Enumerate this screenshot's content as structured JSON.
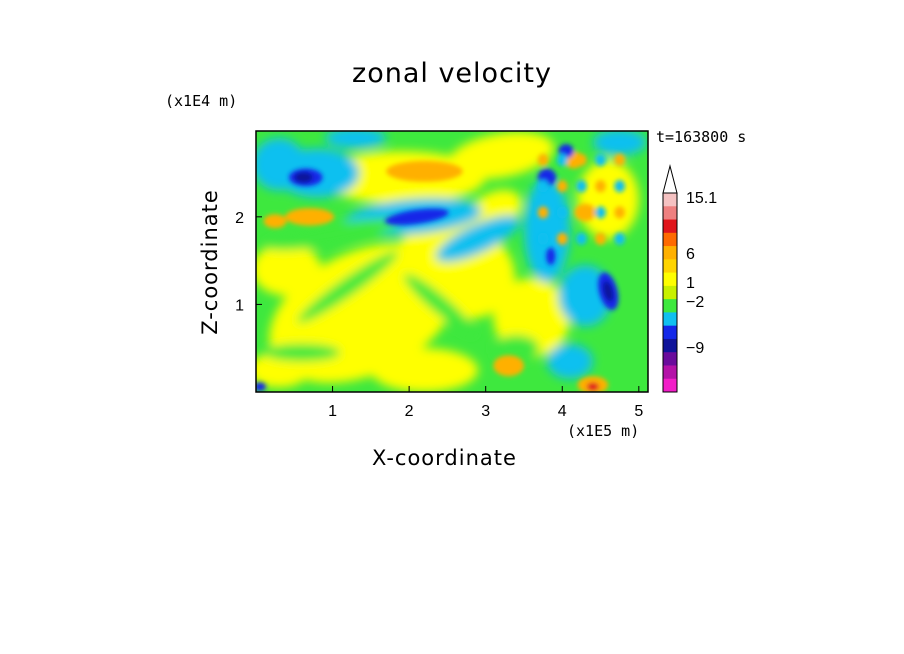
{
  "title": "zonal velocity",
  "y_scale_label": "(x1E4 m)",
  "x_scale_label": "(x1E5 m)",
  "time_label": "t=163800 s",
  "chart_data": {
    "type": "heatmap",
    "title": "zonal velocity",
    "xlabel": "X-coordinate",
    "ylabel": "Z-coordinate",
    "x_multiplier": "(x1E5 m)",
    "y_multiplier": "(x1E4 m)",
    "xlim": [
      0,
      5.12
    ],
    "ylim": [
      0,
      2.98
    ],
    "x_ticks": [
      "1",
      "2",
      "3",
      "4",
      "5"
    ],
    "y_ticks": [
      "1",
      "2"
    ],
    "colorbar": {
      "labels": [
        "15.1",
        "6",
        "1",
        "−2",
        "−9"
      ],
      "extend_max": true,
      "colors": [
        "#f5c2c2",
        "#ee8080",
        "#e0151b",
        "#ff6a00",
        "#ffb000",
        "#ffd400",
        "#ffff00",
        "#c8f000",
        "#3ee83e",
        "#10c0f0",
        "#1428e8",
        "#10149a",
        "#6a0c9c",
        "#b412a8",
        "#f21ec8"
      ]
    },
    "field_colors": {
      "neg_strong": "#10149a",
      "neg": "#1428e8",
      "neg_weak": "#10c0f0",
      "near_zero": "#3ee83e",
      "pos_weak": "#ffff00",
      "pos": "#ffb000",
      "pos_strong": "#e0151b"
    },
    "features": [
      {
        "label": "negative core",
        "x": 0.65,
        "z": 2.45,
        "value": -6
      },
      {
        "label": "negative band",
        "x": 2.1,
        "z": 2.0,
        "value": -5
      },
      {
        "label": "positive core",
        "x": 2.2,
        "z": 2.52,
        "value": 3
      },
      {
        "label": "positive core",
        "x": 0.7,
        "z": 2.0,
        "value": 3
      },
      {
        "label": "negative core",
        "x": 4.6,
        "z": 1.15,
        "value": -8
      },
      {
        "label": "positive core",
        "x": 4.4,
        "z": 0.08,
        "value": 5
      }
    ]
  }
}
